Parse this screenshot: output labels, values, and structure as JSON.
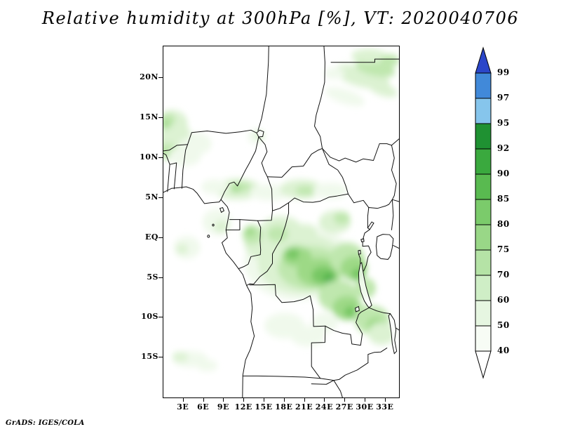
{
  "title": "Relative humidity at 300hPa [%], VT: 2020040706",
  "attribution": "GrADS: IGES/COLA",
  "axes": {
    "lat_labels": [
      "20N",
      "15N",
      "10N",
      "5N",
      "EQ",
      "5S",
      "10S",
      "15S"
    ],
    "lat_values": [
      20,
      15,
      10,
      5,
      0,
      -5,
      -10,
      -15
    ],
    "lon_labels": [
      "3E",
      "6E",
      "9E",
      "12E",
      "15E",
      "18E",
      "21E",
      "24E",
      "27E",
      "30E",
      "33E"
    ],
    "lon_values": [
      3,
      6,
      9,
      12,
      15,
      18,
      21,
      24,
      27,
      30,
      33
    ],
    "lon_range": [
      0,
      35
    ],
    "lat_range": [
      -20,
      24
    ]
  },
  "colorbar": {
    "over_color": "#2b46c9",
    "under_color": "#ffffff",
    "boundary_labels": [
      "99",
      "97",
      "95",
      "92",
      "90",
      "85",
      "80",
      "75",
      "70",
      "60",
      "50",
      "40"
    ],
    "segment_colors_top_to_bottom": [
      "#4189d9",
      "#86c5ec",
      "#1f9132",
      "#3aa93e",
      "#59ba50",
      "#7bcb6b",
      "#99d787",
      "#b5e3a6",
      "#cfeec6",
      "#e6f6e1",
      "#f7fcf5"
    ]
  },
  "map_palette": [
    "#f0f9ec",
    "#dcf2d2",
    "#bfe7ae",
    "#9dd986",
    "#77c763",
    "#4fb24a"
  ],
  "chart_data": {
    "type": "heatmap",
    "title": "Relative humidity at 300hPa [%], VT: 2020040706",
    "variable": "Relative humidity",
    "pressure_level_hPa": 300,
    "units": "%",
    "valid_time": "2020040706",
    "renderer": "GrADS: IGES/COLA",
    "x": {
      "label": "longitude",
      "range_deg_east": [
        0,
        35
      ],
      "ticks": [
        "3E",
        "6E",
        "9E",
        "12E",
        "15E",
        "18E",
        "21E",
        "24E",
        "27E",
        "30E",
        "33E"
      ]
    },
    "y": {
      "label": "latitude",
      "range_deg_north": [
        -20,
        24
      ],
      "ticks": [
        "20N",
        "15N",
        "10N",
        "5N",
        "EQ",
        "5S",
        "10S",
        "15S"
      ]
    },
    "contour_levels": [
      40,
      50,
      60,
      70,
      75,
      80,
      85,
      90,
      92,
      95,
      97,
      99
    ],
    "palette_ascending": [
      "#f7fcf5",
      "#e6f6e1",
      "#cfeec6",
      "#b5e3a6",
      "#99d787",
      "#7bcb6b",
      "#59ba50",
      "#3aa93e",
      "#1f9132",
      "#86c5ec",
      "#4189d9",
      "#2b46c9"
    ],
    "legend_position": "right",
    "grid": false,
    "basemap": "Central Africa political boundaries with lakes (Victoria, Tanganyika, Malawi, Chad)",
    "shaded_features": [
      {
        "region": "Congo basin 14-28E, 8S-2N",
        "humidity_pct": [
          60,
          90
        ]
      },
      {
        "region": "ITCZ band 8-28E near 5-7N",
        "humidity_pct": [
          50,
          70
        ]
      },
      {
        "region": "West Sahel 0-5E, 9-16N",
        "humidity_pct": [
          50,
          70
        ]
      },
      {
        "region": "NE diagonal streaks 24-35E, 15-22N",
        "humidity_pct": [
          50,
          65
        ]
      },
      {
        "region": "SE highlands 29-33E, 8-13S",
        "humidity_pct": [
          50,
          70
        ]
      },
      {
        "region": "South-central 15-25E, 9-15S",
        "humidity_pct": [
          40,
          50
        ]
      },
      {
        "region": "SW coastal strip 2-7E, 15-18S",
        "humidity_pct": [
          40,
          55
        ]
      }
    ]
  }
}
